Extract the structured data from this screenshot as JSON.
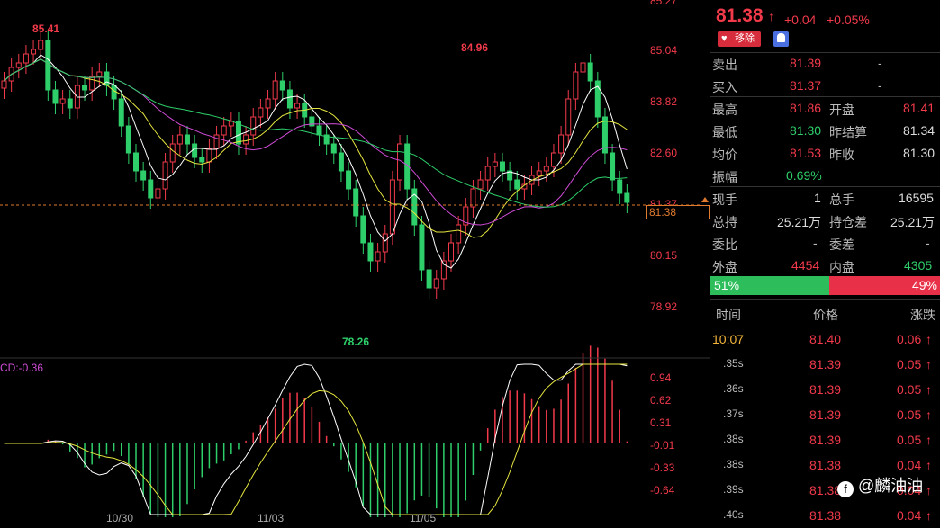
{
  "chart": {
    "price_axis": [
      "85.04",
      "83.82",
      "82.60",
      "81.37",
      "80.15",
      "78.92"
    ],
    "top_cut_label": "85.27",
    "current_price_tag": "81.38",
    "high_label": "85.41",
    "peak2_label": "84.96",
    "low_label": "78.26",
    "macd_label": "CD:-0.36",
    "macd_axis": [
      "0.94",
      "0.62",
      "0.31",
      "-0.01",
      "-0.33",
      "-0.64"
    ],
    "date_labels": [
      "10/30",
      "11/03",
      "11/05"
    ]
  },
  "header": {
    "price": "81.38",
    "arrow": "↑",
    "change": "+0.04",
    "change_pct": "+0.05%",
    "remove_button": "移除"
  },
  "quote": {
    "sell": {
      "label": "卖出",
      "price": "81.39",
      "vol": "-"
    },
    "buy": {
      "label": "买入",
      "price": "81.37",
      "vol": "-"
    },
    "high": {
      "label": "最高",
      "value": "81.86"
    },
    "open": {
      "label": "开盘",
      "value": "81.41"
    },
    "low": {
      "label": "最低",
      "value": "81.30"
    },
    "prev_settle": {
      "label": "昨结算",
      "value": "81.34"
    },
    "avg": {
      "label": "均价",
      "value": "81.53"
    },
    "prev_close": {
      "label": "昨收",
      "value": "81.30"
    },
    "amplitude": {
      "label": "振幅",
      "value": "0.69%"
    },
    "current_hand": {
      "label": "现手",
      "value": "1"
    },
    "total_hand": {
      "label": "总手",
      "value": "16595"
    },
    "open_interest": {
      "label": "总持",
      "value": "25.21万"
    },
    "oi_change": {
      "label": "持仓差",
      "value": "25.21万"
    },
    "bid_ratio": {
      "label": "委比",
      "value": "-"
    },
    "bid_diff": {
      "label": "委差",
      "value": "-"
    },
    "outer": {
      "label": "外盘",
      "value": "4454"
    },
    "inner": {
      "label": "内盘",
      "value": "4305"
    },
    "buy_pct": "51%",
    "sell_pct": "49%"
  },
  "ticks": {
    "headers": {
      "time": "时间",
      "price": "价格",
      "change": "涨跌"
    },
    "rows": [
      {
        "time": "10:07",
        "price": "81.40",
        "change": "0.06"
      },
      {
        "time": ".35s",
        "price": "81.39",
        "change": "0.05"
      },
      {
        "time": ".36s",
        "price": "81.39",
        "change": "0.05"
      },
      {
        "time": ".37s",
        "price": "81.39",
        "change": "0.05"
      },
      {
        "time": ".38s",
        "price": "81.39",
        "change": "0.05"
      },
      {
        "time": ".38s",
        "price": "81.38",
        "change": "0.04"
      },
      {
        "time": ".39s",
        "price": "81.38",
        "change": "0.04"
      },
      {
        "time": ".40s",
        "price": "81.38",
        "change": "0.04"
      }
    ]
  },
  "watermark": "@麟油油",
  "colors": {
    "up": "#f23a4b",
    "down": "#2ecf6a",
    "accent": "#ff9a2e"
  }
}
